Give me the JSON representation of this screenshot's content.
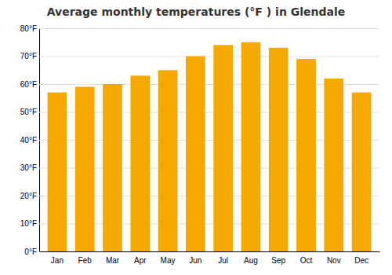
{
  "chart_data": {
    "type": "bar",
    "title": "Average monthly temperatures (°F ) in Glendale",
    "categories": [
      "Jan",
      "Feb",
      "Mar",
      "Apr",
      "May",
      "Jun",
      "Jul",
      "Aug",
      "Sep",
      "Oct",
      "Nov",
      "Dec"
    ],
    "values": [
      57,
      59,
      60,
      63,
      65,
      70,
      74,
      75,
      73,
      69,
      62,
      57
    ],
    "color": "#F5A800",
    "ylim": [
      0,
      80
    ],
    "yticks": [
      {
        "value": 0,
        "label": "0°F"
      },
      {
        "value": 10,
        "label": "10°F"
      },
      {
        "value": 20,
        "label": "20°F"
      },
      {
        "value": 30,
        "label": "30°F"
      },
      {
        "value": 40,
        "label": "40°F"
      },
      {
        "value": 50,
        "label": "50°F"
      },
      {
        "value": 60,
        "label": "60°F"
      },
      {
        "value": 70,
        "label": "70°F"
      },
      {
        "value": 80,
        "label": "80°F"
      }
    ],
    "grid": true
  }
}
